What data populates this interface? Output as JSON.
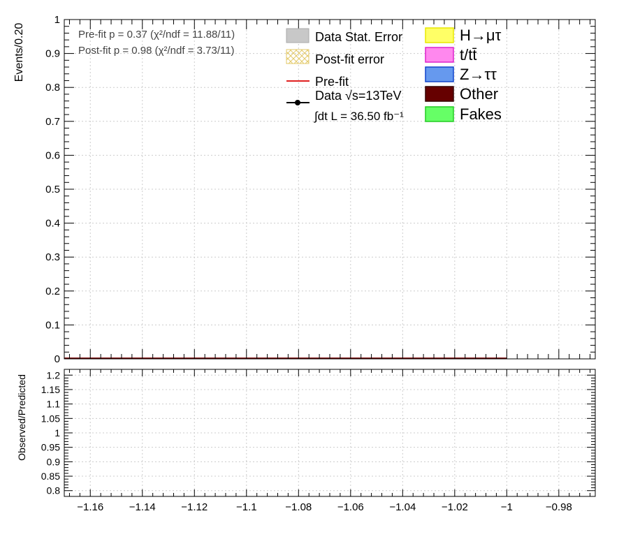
{
  "chart_data": [
    {
      "type": "bar",
      "panel": "main",
      "ylabel": "Events/0.20",
      "xlim": [
        -1.17,
        -0.966
      ],
      "ylim": [
        0,
        1
      ],
      "yticks": [
        "0",
        "0.1",
        "0.2",
        "0.3",
        "0.4",
        "0.5",
        "0.6",
        "0.7",
        "0.8",
        "0.9",
        "1"
      ],
      "grid": true,
      "fit_info": [
        "Pre-fit   p = 0.37 (χ²/ndf = 11.88/11)",
        "Post-fit p = 0.98 (χ²/ndf = 3.73/11)"
      ],
      "legend_left": [
        {
          "label": "Data Stat. Error",
          "symbol": "box",
          "color": "#c8c8c8"
        },
        {
          "label": "Post-fit error",
          "symbol": "hatch",
          "color": "#e3c96a"
        },
        {
          "label": "Pre-fit",
          "symbol": "line",
          "color": "#e02020"
        },
        {
          "label": "Data  √s=13TeV",
          "symbol": "marker",
          "color": "#000000"
        }
      ],
      "lumi_label": "∫dt L = 36.50 fb⁻¹",
      "legend_right": [
        {
          "label": "H→μτ",
          "fill": "#ffff66",
          "stroke": "#e8e800"
        },
        {
          "label": "t/tt̄",
          "fill": "#ff88ee",
          "stroke": "#dd22cc"
        },
        {
          "label": "Z→ττ",
          "fill": "#6699ee",
          "stroke": "#1144cc"
        },
        {
          "label": "Other",
          "fill": "#660000",
          "stroke": "#330000"
        },
        {
          "label": "Fakes",
          "fill": "#66ff66",
          "stroke": "#22cc22"
        }
      ],
      "series": [
        {
          "name": "Pre-fit",
          "x_range": [
            -1.17,
            -1.0
          ],
          "values": [
            0
          ],
          "color": "#e02020"
        },
        {
          "name": "Other",
          "x_range": [
            -1.17,
            -1.0
          ],
          "values": [
            0
          ],
          "color": "#660000"
        }
      ]
    },
    {
      "type": "line",
      "panel": "ratio",
      "ylabel": "Observed/Predicted",
      "xlim": [
        -1.17,
        -0.966
      ],
      "ylim": [
        0.78,
        1.22
      ],
      "xticks": [
        "−1.16",
        "−1.14",
        "−1.12",
        "−1.1",
        "−1.08",
        "−1.06",
        "−1.04",
        "−1.02",
        "−1",
        "−0.98"
      ],
      "yticks": [
        "0.8",
        "0.85",
        "0.9",
        "0.95",
        "1",
        "1.05",
        "1.1",
        "1.15",
        "1.2"
      ],
      "grid": true
    }
  ]
}
